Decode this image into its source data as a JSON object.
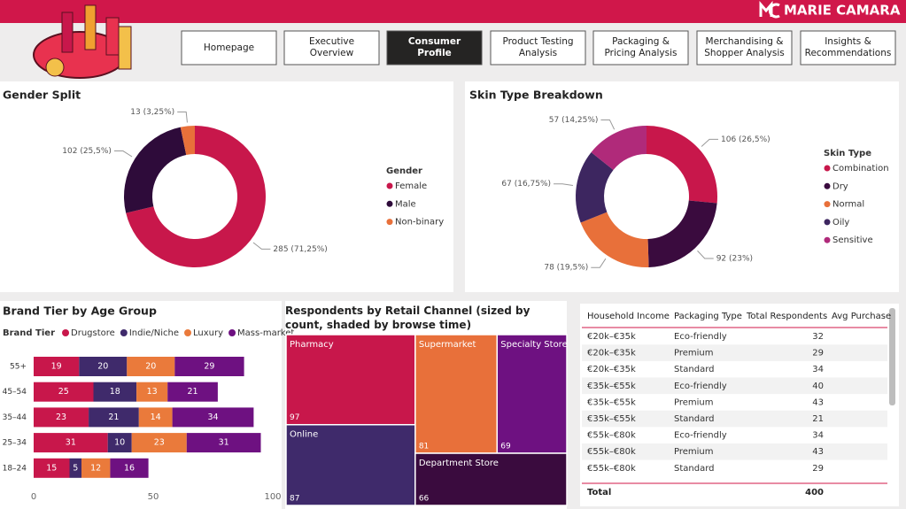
{
  "header": {
    "brand": "MARIE CAMARA"
  },
  "nav": {
    "items": [
      "Homepage",
      "Executive Overview",
      "Consumer Profile",
      "Product Testing Analysis",
      "Packaging & Pricing Analysis",
      "Merchandising & Shopper Analysis",
      "Insights & Recommendations"
    ],
    "active": 2
  },
  "chart_data": [
    {
      "type": "pie",
      "donut": true,
      "title": "Gender Split",
      "legend_title": "Gender",
      "categories": [
        "Female",
        "Male",
        "Non-binary"
      ],
      "values": [
        285,
        102,
        13
      ],
      "value_labels": [
        "285 (71,25%)",
        "102 (25,5%)",
        "13 (3,25%)"
      ],
      "colors": [
        "#c8174b",
        "#2e0b3a",
        "#e8703a"
      ]
    },
    {
      "type": "pie",
      "donut": true,
      "title": "Skin Type Breakdown",
      "legend_title": "Skin Type",
      "categories": [
        "Combination",
        "Dry",
        "Normal",
        "Oily",
        "Sensitive"
      ],
      "values": [
        106,
        92,
        78,
        67,
        57
      ],
      "value_labels": [
        "106 (26,5%)",
        "92 (23%)",
        "78 (19,5%)",
        "67 (16,75%)",
        "57 (14,25%)"
      ],
      "colors": [
        "#c8174b",
        "#3a0b3e",
        "#e8703a",
        "#3d2660",
        "#b02a7a"
      ]
    },
    {
      "type": "bar",
      "orientation": "horizontal",
      "stacked": true,
      "title": "Brand Tier by Age Group",
      "legend_title": "Brand Tier",
      "categories": [
        "55+",
        "45–54",
        "35–44",
        "25–34",
        "18–24"
      ],
      "series": [
        {
          "name": "Drugstore",
          "color": "#c8174b",
          "values": [
            19,
            25,
            23,
            31,
            15
          ]
        },
        {
          "name": "Indie/Niche",
          "color": "#3f2a6b",
          "values": [
            20,
            18,
            21,
            10,
            5
          ]
        },
        {
          "name": "Luxury",
          "color": "#ea7a3b",
          "values": [
            20,
            13,
            14,
            23,
            12
          ]
        },
        {
          "name": "Mass-market",
          "color": "#6e1181",
          "values": [
            29,
            21,
            34,
            31,
            16
          ]
        }
      ],
      "xlim": [
        0,
        100
      ],
      "xticks": [
        0,
        50,
        100
      ]
    },
    {
      "type": "treemap",
      "title": "Respondents by Retail Channel (sized by count, shaded by browse time)",
      "categories": [
        "Pharmacy",
        "Supermarket",
        "Specialty Store",
        "Online",
        "Department Store"
      ],
      "values": [
        97,
        81,
        69,
        87,
        66
      ],
      "colors": [
        "#c8174b",
        "#e8703a",
        "#6e1181",
        "#3f2a6b",
        "#3a0b3e"
      ]
    }
  ],
  "table": {
    "columns": [
      "Household Income",
      "Packaging Type",
      "Total Respondents",
      "Avg Purchase"
    ],
    "rows": [
      [
        "€20k–€35k",
        "Eco-friendly",
        32
      ],
      [
        "€20k–€35k",
        "Premium",
        29
      ],
      [
        "€20k–€35k",
        "Standard",
        34
      ],
      [
        "€35k–€55k",
        "Eco-friendly",
        40
      ],
      [
        "€35k–€55k",
        "Premium",
        43
      ],
      [
        "€35k–€55k",
        "Standard",
        21
      ],
      [
        "€55k–€80k",
        "Eco-friendly",
        34
      ],
      [
        "€55k–€80k",
        "Premium",
        43
      ],
      [
        "€55k–€80k",
        "Standard",
        29
      ]
    ],
    "total": [
      "Total",
      400
    ]
  }
}
